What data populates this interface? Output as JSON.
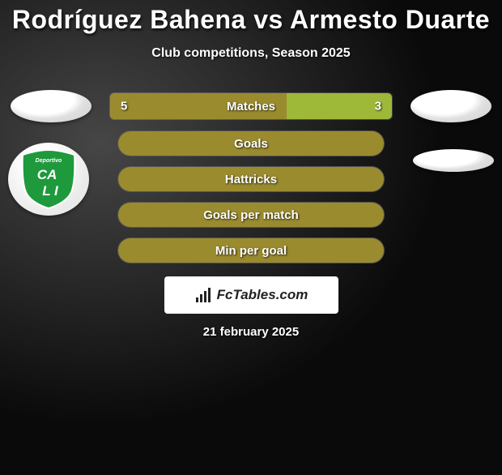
{
  "header": {
    "title": "Rodríguez Bahena vs Armesto Duarte",
    "subtitle": "Club competitions, Season 2025"
  },
  "matches_bar": {
    "label": "Matches",
    "left_value": "5",
    "right_value": "3",
    "left_pct": 62.5,
    "right_pct": 37.5,
    "left_color": "#9a8b2f",
    "right_color": "#9eb838"
  },
  "stat_rows": [
    {
      "label": "Goals",
      "fill_pct": 100,
      "fill_color": "#9a8b2f",
      "bg_color": "#2a2a2a"
    },
    {
      "label": "Hattricks",
      "fill_pct": 100,
      "fill_color": "#9a8b2f",
      "bg_color": "#2a2a2a"
    },
    {
      "label": "Goals per match",
      "fill_pct": 100,
      "fill_color": "#9a8b2f",
      "bg_color": "#2a2a2a"
    },
    {
      "label": "Min per goal",
      "fill_pct": 100,
      "fill_color": "#9a8b2f",
      "bg_color": "#2a2a2a"
    }
  ],
  "brand": {
    "text": "FcTables.com"
  },
  "footer": {
    "date": "21 february 2025"
  },
  "club_logo": {
    "shield_color": "#1e9a3c",
    "text_top": "Deportivo",
    "text_main": "CALI",
    "text_color": "#ffffff",
    "outline_color": "#ffffff"
  },
  "colors": {
    "title_text": "#ffffff",
    "background_dark": "#0a0a0a",
    "background_light": "#323232"
  }
}
